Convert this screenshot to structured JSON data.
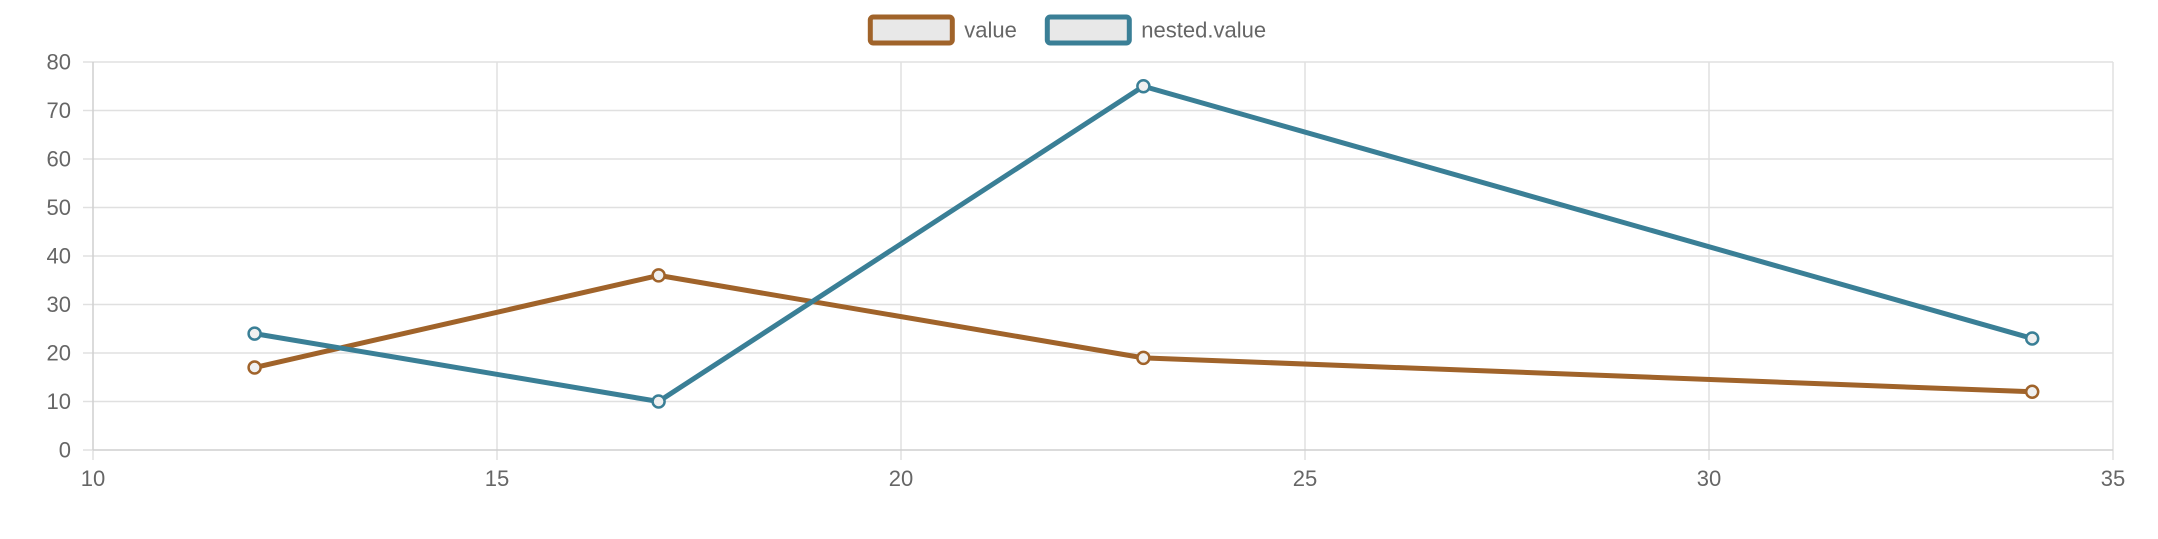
{
  "chart_data": {
    "type": "line",
    "x_axis": {
      "min": 10,
      "max": 35,
      "ticks": [
        10,
        15,
        20,
        25,
        30,
        35
      ],
      "tick_labels": [
        "10",
        "15",
        "20",
        "25",
        "30",
        "35"
      ]
    },
    "y_axis": {
      "min": 0,
      "max": 80,
      "ticks": [
        0,
        10,
        20,
        30,
        40,
        50,
        60,
        70,
        80
      ],
      "tick_labels": [
        "0",
        "10",
        "20",
        "30",
        "40",
        "50",
        "60",
        "70",
        "80"
      ]
    },
    "grid": true,
    "legend_position": "top-center",
    "series": [
      {
        "name": "value",
        "color": "#a0632a",
        "points": [
          {
            "x": 12,
            "y": 17
          },
          {
            "x": 17,
            "y": 36
          },
          {
            "x": 23,
            "y": 19
          },
          {
            "x": 34,
            "y": 12
          }
        ]
      },
      {
        "name": "nested.value",
        "color": "#3a7f96",
        "points": [
          {
            "x": 12,
            "y": 24
          },
          {
            "x": 17,
            "y": 10
          },
          {
            "x": 23,
            "y": 75
          },
          {
            "x": 34,
            "y": 23
          }
        ]
      }
    ]
  }
}
